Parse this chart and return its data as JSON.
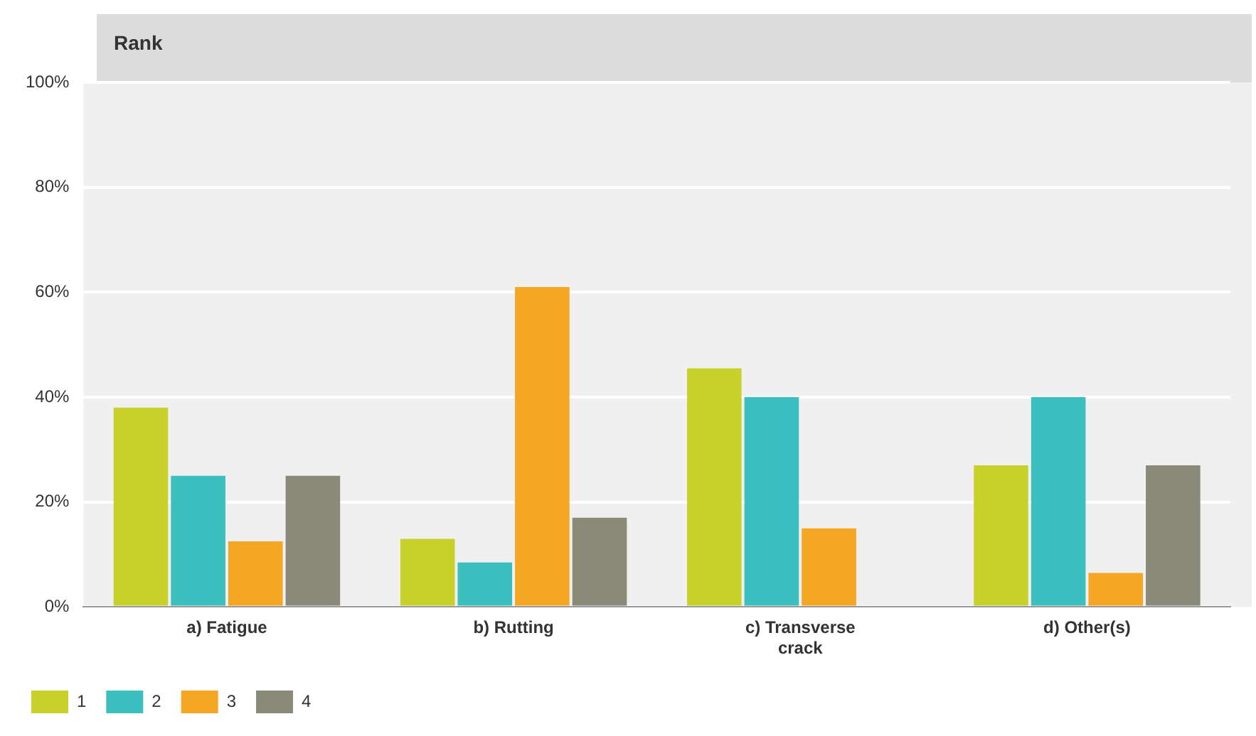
{
  "chart_data": {
    "type": "bar",
    "title": "Rank",
    "categories": [
      "a) Fatigue",
      "b) Rutting",
      "c) Transverse crack",
      "d) Other(s)"
    ],
    "series": [
      {
        "name": "1",
        "color": "#c8d12a",
        "values": [
          38,
          13,
          45.5,
          27
        ]
      },
      {
        "name": "2",
        "color": "#3bbfbf",
        "values": [
          25,
          8.5,
          40,
          40
        ]
      },
      {
        "name": "3",
        "color": "#f5a623",
        "values": [
          12.5,
          61,
          15,
          6.5
        ]
      },
      {
        "name": "4",
        "color": "#8a8a78",
        "values": [
          25,
          17,
          0,
          27
        ]
      }
    ],
    "ylim": [
      0,
      100
    ],
    "yticks": [
      {
        "value": 0,
        "label": "0%"
      },
      {
        "value": 20,
        "label": "20%"
      },
      {
        "value": 40,
        "label": "40%"
      },
      {
        "value": 60,
        "label": "60%"
      },
      {
        "value": 80,
        "label": "80%"
      },
      {
        "value": 100,
        "label": "100%"
      }
    ],
    "grid": "y",
    "legend": "bottom left"
  }
}
